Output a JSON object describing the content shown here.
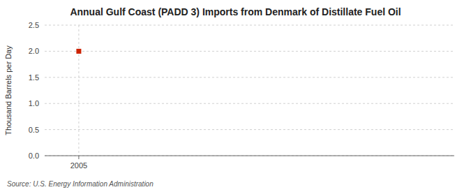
{
  "chart_data": {
    "type": "scatter",
    "title": "Annual Gulf Coast (PADD 3) Imports from Denmark of Distillate Fuel Oil",
    "ylabel": "Thousand Barrels per Day",
    "annotations": [
      "Source: U.S. Energy Information Administration"
    ],
    "x": [
      2005
    ],
    "values": [
      2.0
    ],
    "color": "#cc2200",
    "marker": "square",
    "xlim": [
      2004.2,
      2013.8
    ],
    "xticks": [
      2005
    ],
    "ylim": [
      0.0,
      2.5
    ],
    "yticks": [
      {
        "value": 0.0,
        "label": "0.0"
      },
      0.5,
      {
        "value": 1.0,
        "label": "1.0"
      },
      1.5,
      {
        "value": 2.0,
        "label": "2.0"
      },
      2.5
    ],
    "grid": true
  }
}
